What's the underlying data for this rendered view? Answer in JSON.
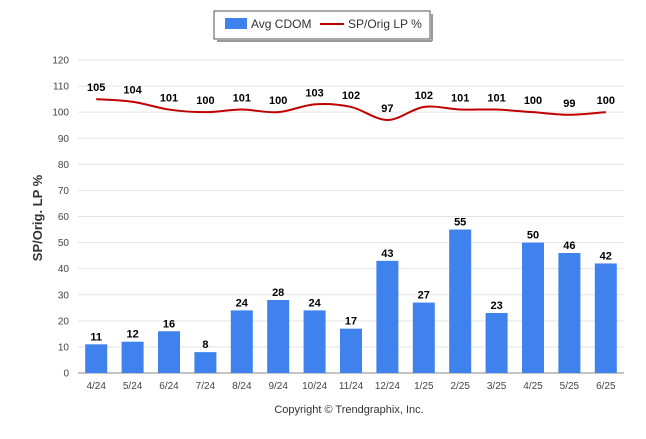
{
  "chart_data": {
    "type": "bar",
    "categories": [
      "4/24",
      "5/24",
      "6/24",
      "7/24",
      "8/24",
      "9/24",
      "10/24",
      "11/24",
      "12/24",
      "1/25",
      "2/25",
      "3/25",
      "4/25",
      "5/25",
      "6/25"
    ],
    "series": [
      {
        "name": "Avg CDOM",
        "type": "bar",
        "color": "#3f82ee",
        "values": [
          11,
          12,
          16,
          8,
          24,
          28,
          24,
          17,
          43,
          27,
          55,
          23,
          50,
          46,
          42
        ]
      },
      {
        "name": "SP/Orig LP %",
        "type": "line",
        "color": "#c00000",
        "values": [
          105,
          104,
          101,
          100,
          101,
          100,
          103,
          102,
          97,
          102,
          101,
          101,
          100,
          99,
          100
        ]
      }
    ],
    "ylabel": "SP/Orig. LP %",
    "ylim": [
      0,
      120
    ],
    "yticks": [
      0,
      10,
      20,
      30,
      40,
      50,
      60,
      70,
      80,
      90,
      100,
      110,
      120
    ],
    "grid": true,
    "legend_position": "top-center",
    "credit": "Copyright © Trendgraphix, Inc."
  }
}
